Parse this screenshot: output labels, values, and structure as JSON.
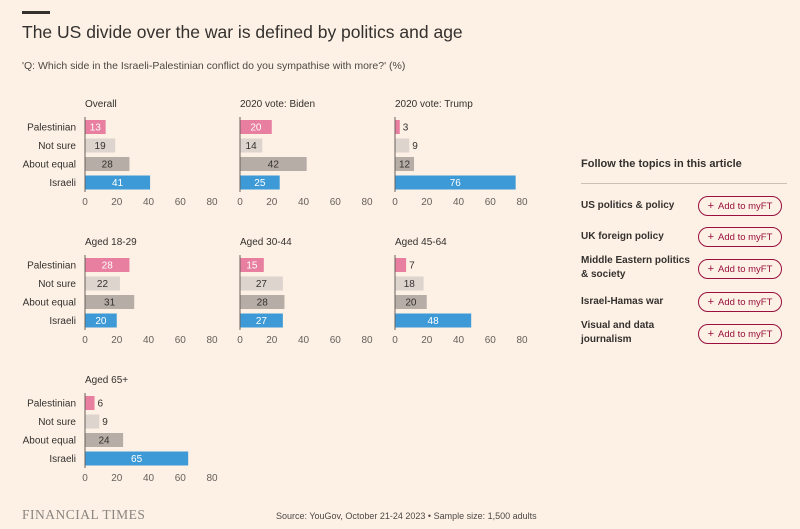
{
  "title": "The US divide over the war is defined by politics and age",
  "subtitle": "'Q: Which side in the Israeli-Palestinian conflict do you sympathise with more?' (%)",
  "chart_data": {
    "type": "bar",
    "orientation": "horizontal",
    "categories": [
      "Palestinian",
      "Not sure",
      "About equal",
      "Israeli"
    ],
    "xlim": [
      0,
      80
    ],
    "ticks": [
      0,
      20,
      40,
      60,
      80
    ],
    "colors": {
      "Palestinian": "#e87ea0",
      "Not sure": "#ddd4ce",
      "About equal": "#b6ada6",
      "Israeli": "#3d9ad6"
    },
    "panels": [
      {
        "title": "Overall",
        "values": [
          13,
          19,
          28,
          41
        ]
      },
      {
        "title": "2020 vote: Biden",
        "values": [
          20,
          14,
          42,
          25
        ]
      },
      {
        "title": "2020 vote: Trump",
        "values": [
          3,
          9,
          12,
          76
        ]
      },
      {
        "title": "Aged 18-29",
        "values": [
          28,
          22,
          31,
          20
        ]
      },
      {
        "title": "Aged 30-44",
        "values": [
          15,
          27,
          28,
          27
        ]
      },
      {
        "title": "Aged 45-64",
        "values": [
          7,
          18,
          20,
          48
        ]
      },
      {
        "title": "Aged 65+",
        "values": [
          6,
          9,
          24,
          65
        ]
      }
    ]
  },
  "sidebar": {
    "heading": "Follow the topics in this article",
    "button_label": "Add to myFT",
    "topics": [
      {
        "name": "US politics & policy"
      },
      {
        "name": "UK foreign policy"
      },
      {
        "name": "Middle Eastern politics & society"
      },
      {
        "name": "Israel-Hamas war"
      },
      {
        "name": "Visual and data journalism"
      }
    ]
  },
  "footer": {
    "logo": "FINANCIAL TIMES",
    "source": "Source: YouGov, October 21-24 2023 • Sample size: 1,500 adults"
  }
}
